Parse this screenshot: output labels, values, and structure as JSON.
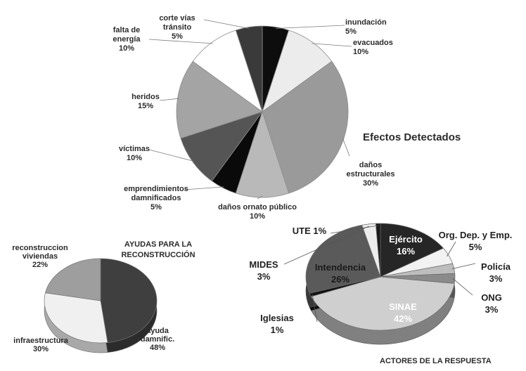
{
  "chart_data": [
    {
      "type": "pie",
      "title": "Efectos Detectados",
      "slices": [
        {
          "label": "inundación",
          "value": 5,
          "display": "5%",
          "color": "#0d0d0d"
        },
        {
          "label": "evacuados",
          "value": 10,
          "display": "10%",
          "color": "#ececec"
        },
        {
          "label": "daños estructurales",
          "value": 30,
          "display": "30%",
          "color": "#9a9a9a"
        },
        {
          "label": "daños ornato público",
          "value": 10,
          "display": "10%",
          "color": "#b9b9b9"
        },
        {
          "label": "emprendimientos damnificados",
          "value": 5,
          "display": "5%",
          "color": "#0a0a0a"
        },
        {
          "label": "víctimas",
          "value": 10,
          "display": "10%",
          "color": "#555555"
        },
        {
          "label": "heridos",
          "value": 15,
          "display": "15%",
          "color": "#a4a4a4"
        },
        {
          "label": "falta de energía",
          "value": 10,
          "display": "10%",
          "color": "#ffffff"
        },
        {
          "label": "corte vías tránsito",
          "value": 5,
          "display": "5%",
          "color": "#3a3a3a"
        }
      ],
      "label_lines": {
        "inundación": [
          "inundación"
        ],
        "evacuados": [
          "evacuados"
        ],
        "daños estructurales": [
          "daños",
          "estructurales"
        ],
        "daños ornato público": [
          "daños ornato público"
        ],
        "emprendimientos damnificados": [
          "emprendimientos",
          "damnificados"
        ],
        "víctimas": [
          "víctimas"
        ],
        "heridos": [
          "heridos"
        ],
        "falta de energía": [
          "falta de",
          "energía"
        ],
        "corte vías tránsito": [
          "corte vías",
          "tránsito"
        ]
      }
    },
    {
      "type": "pie",
      "title": "AYUDAS PARA LA RECONSTRUCCIÓN",
      "title_lines": [
        "AYUDAS PARA LA",
        "RECONSTRUCCIÓN"
      ],
      "slices": [
        {
          "label": "ayuda damnific.",
          "value": 48,
          "display": "48%",
          "color": "#3f3f3f"
        },
        {
          "label": "infraestructura",
          "value": 30,
          "display": "30%",
          "color": "#f0f0f0"
        },
        {
          "label": "reconstruccion viviendas",
          "value": 22,
          "display": "22%",
          "color": "#9e9e9e"
        }
      ],
      "label_lines": {
        "ayuda damnific.": [
          "ayuda",
          "damnific."
        ],
        "infraestructura": [
          "infraestructura"
        ],
        "reconstruccion viviendas": [
          "reconstruccion",
          "viviendas"
        ]
      }
    },
    {
      "type": "pie",
      "title": "ACTORES DE LA RESPUESTA",
      "slices": [
        {
          "label": "Ejército",
          "value": 16,
          "display": "16%",
          "color": "#262626"
        },
        {
          "label": "Org. Dep. y Emp.",
          "value": 5,
          "display": "5%",
          "color": "#f2f2f2"
        },
        {
          "label": "Policía",
          "value": 3,
          "display": "3%",
          "color": "#bdbdbd"
        },
        {
          "label": "ONG",
          "value": 3,
          "display": "3%",
          "color": "#8a8a8a"
        },
        {
          "label": "SINAE",
          "value": 42,
          "display": "42%",
          "color": "#cfcfcf"
        },
        {
          "label": "Iglesias",
          "value": 1,
          "display": "1%",
          "color": "#111111"
        },
        {
          "label": "Intendencia",
          "value": 26,
          "display": "26%",
          "color": "#5a5a5a"
        },
        {
          "label": "MIDES",
          "value": 3,
          "display": "3%",
          "color": "#ededed"
        },
        {
          "label": "UTE",
          "value": 1,
          "display": "1%",
          "color": "#1a1a1a"
        }
      ]
    }
  ]
}
